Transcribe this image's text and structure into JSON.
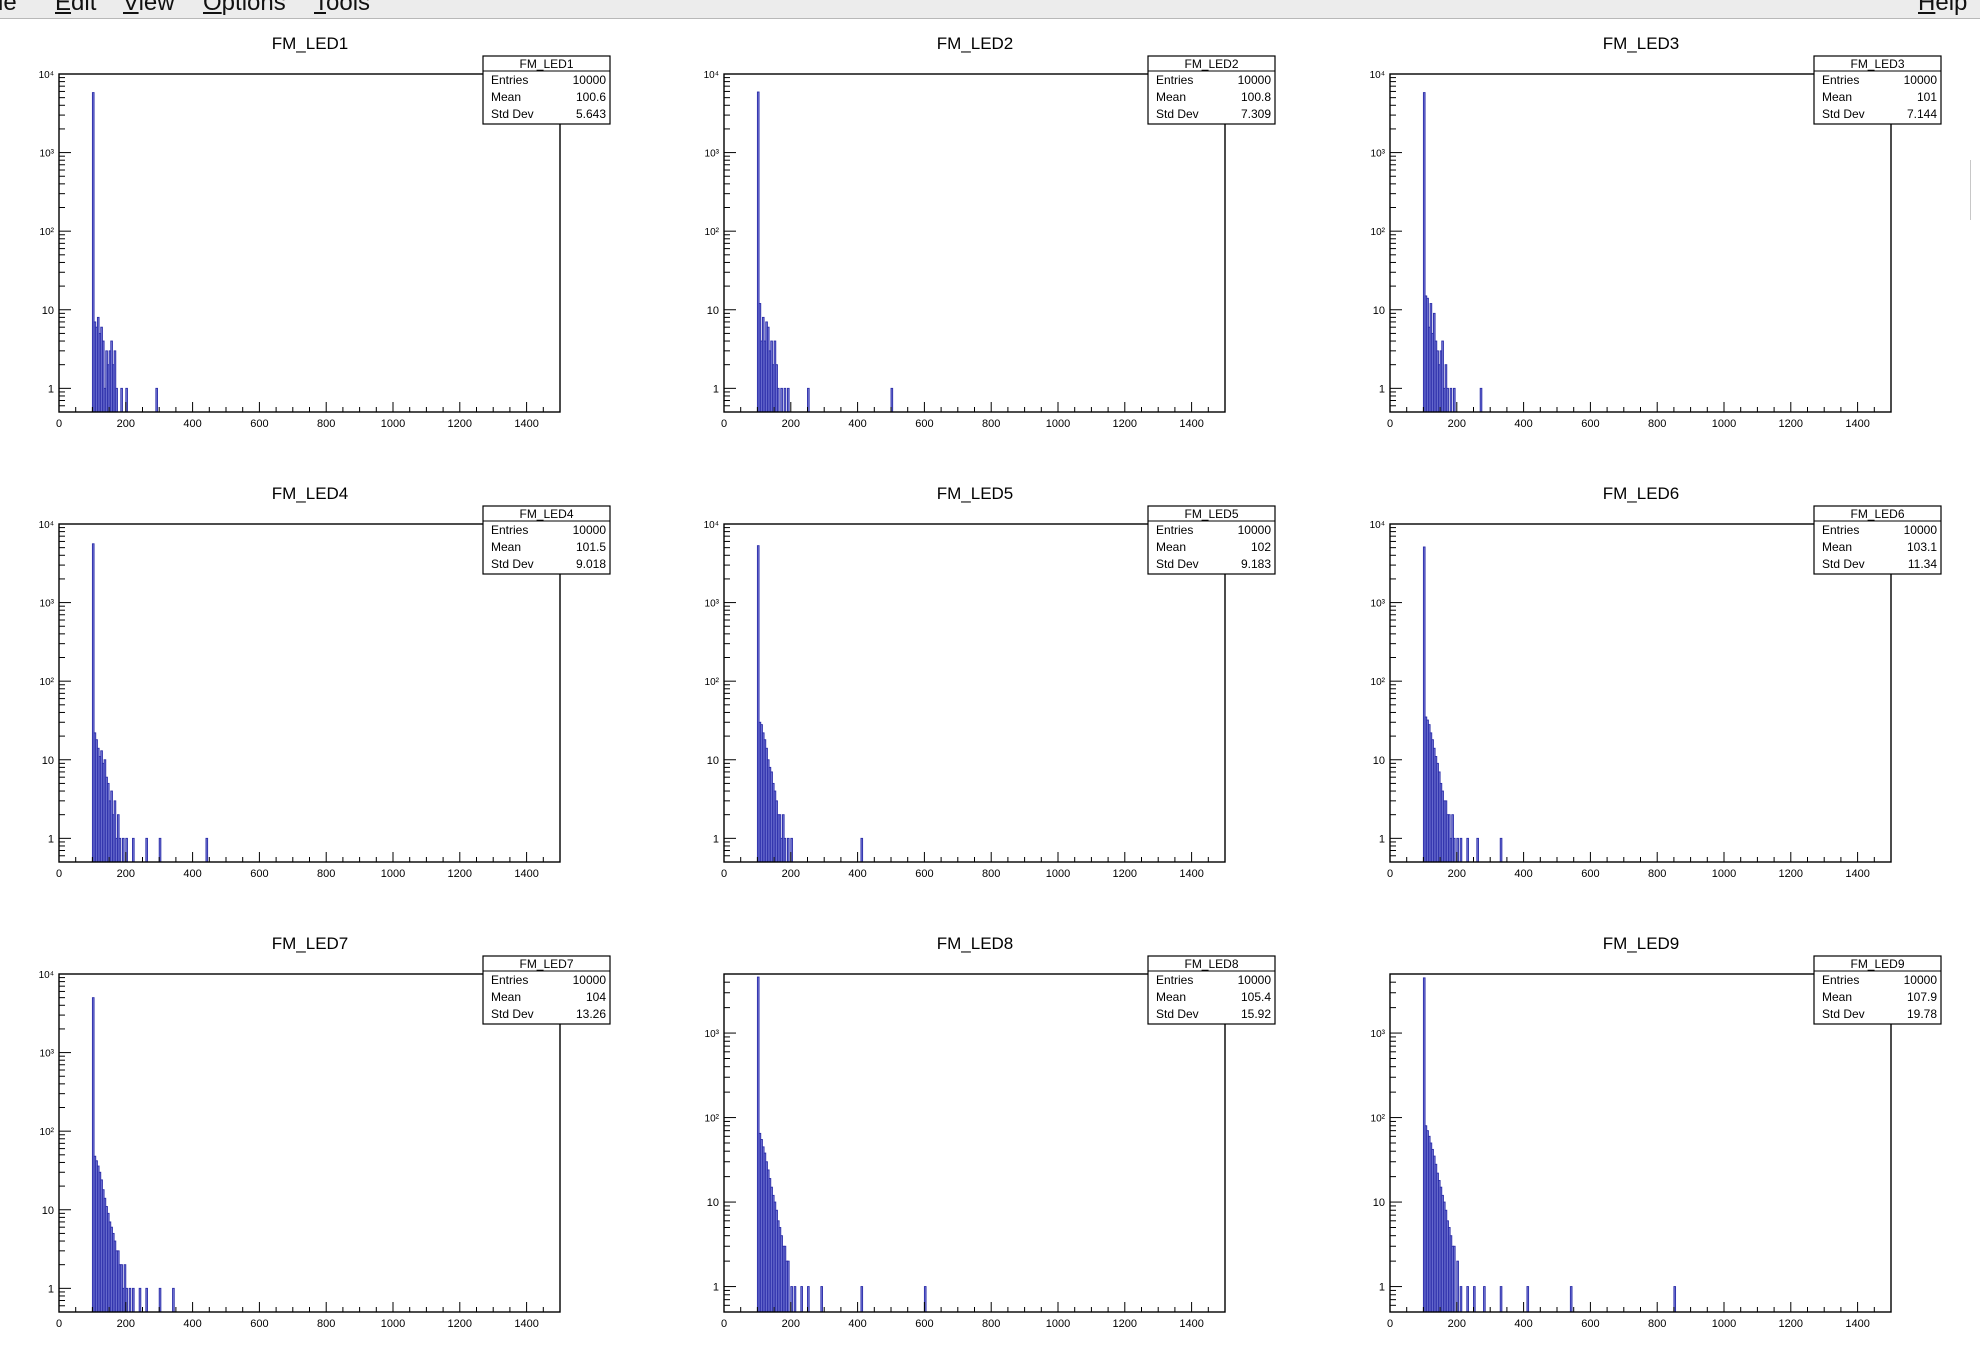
{
  "menubar": {
    "items": [
      {
        "name": "file",
        "pre": "",
        "acc": "F",
        "post": "ile"
      },
      {
        "name": "edit",
        "pre": "",
        "acc": "E",
        "post": "dit"
      },
      {
        "name": "view",
        "pre": "",
        "acc": "V",
        "post": "iew"
      },
      {
        "name": "options",
        "pre": "",
        "acc": "O",
        "post": "ptions"
      },
      {
        "name": "tools",
        "pre": "",
        "acc": "T",
        "post": "ools"
      }
    ],
    "help": {
      "pre": "",
      "acc": "H",
      "post": "elp"
    }
  },
  "colors": {
    "fill": "#7b7fd9",
    "line": "#2a2ca8",
    "axis": "#000000"
  },
  "chart_data": [
    {
      "type": "bar",
      "title": "FM_LED1",
      "scale": "log",
      "xlim": [
        0,
        1500
      ],
      "ylim": [
        0.5,
        10000
      ],
      "x_ticks": [
        0,
        200,
        400,
        600,
        800,
        1000,
        1200,
        1400
      ],
      "y_ticks": [
        {
          "v": 1,
          "label": "1"
        },
        {
          "v": 10,
          "label": "10"
        },
        {
          "v": 100,
          "label": "10²"
        },
        {
          "v": 1000,
          "label": "10³"
        },
        {
          "v": 10000,
          "label": "10⁴"
        }
      ],
      "stats": {
        "name": "FM_LED1",
        "entries": "10000",
        "mean": "100.6",
        "stddev": "5.643"
      },
      "bins": [
        [
          100,
          5800
        ],
        [
          105,
          7
        ],
        [
          110,
          6
        ],
        [
          115,
          8
        ],
        [
          120,
          5
        ],
        [
          125,
          6
        ],
        [
          130,
          4
        ],
        [
          135,
          1
        ],
        [
          140,
          3
        ],
        [
          145,
          2
        ],
        [
          150,
          3
        ],
        [
          155,
          4
        ],
        [
          160,
          2
        ],
        [
          165,
          3
        ],
        [
          170,
          1
        ],
        [
          185,
          1
        ],
        [
          200,
          1
        ],
        [
          290,
          1
        ]
      ]
    },
    {
      "type": "bar",
      "title": "FM_LED2",
      "scale": "log",
      "xlim": [
        0,
        1500
      ],
      "ylim": [
        0.5,
        10000
      ],
      "x_ticks": [
        0,
        200,
        400,
        600,
        800,
        1000,
        1200,
        1400
      ],
      "y_ticks": [
        {
          "v": 1,
          "label": "1"
        },
        {
          "v": 10,
          "label": "10"
        },
        {
          "v": 100,
          "label": "10²"
        },
        {
          "v": 1000,
          "label": "10³"
        },
        {
          "v": 10000,
          "label": "10⁴"
        }
      ],
      "stats": {
        "name": "FM_LED2",
        "entries": "10000",
        "mean": "100.8",
        "stddev": "7.309"
      },
      "bins": [
        [
          100,
          5900
        ],
        [
          105,
          12
        ],
        [
          110,
          4
        ],
        [
          115,
          8
        ],
        [
          120,
          4
        ],
        [
          125,
          7
        ],
        [
          130,
          6
        ],
        [
          135,
          3
        ],
        [
          140,
          4
        ],
        [
          145,
          2
        ],
        [
          150,
          4
        ],
        [
          155,
          2
        ],
        [
          160,
          1
        ],
        [
          170,
          1
        ],
        [
          180,
          1
        ],
        [
          190,
          1
        ],
        [
          250,
          1
        ],
        [
          500,
          1
        ]
      ]
    },
    {
      "type": "bar",
      "title": "FM_LED3",
      "scale": "log",
      "xlim": [
        0,
        1500
      ],
      "ylim": [
        0.5,
        10000
      ],
      "x_ticks": [
        0,
        200,
        400,
        600,
        800,
        1000,
        1200,
        1400
      ],
      "y_ticks": [
        {
          "v": 1,
          "label": "1"
        },
        {
          "v": 10,
          "label": "10"
        },
        {
          "v": 100,
          "label": "10²"
        },
        {
          "v": 1000,
          "label": "10³"
        },
        {
          "v": 10000,
          "label": "10⁴"
        }
      ],
      "stats": {
        "name": "FM_LED3",
        "entries": "10000",
        "mean": "101",
        "stddev": "7.144"
      },
      "bins": [
        [
          100,
          5800
        ],
        [
          105,
          15
        ],
        [
          110,
          14
        ],
        [
          115,
          6
        ],
        [
          120,
          12
        ],
        [
          125,
          5
        ],
        [
          130,
          9
        ],
        [
          135,
          4
        ],
        [
          140,
          3
        ],
        [
          145,
          2
        ],
        [
          150,
          3
        ],
        [
          155,
          4
        ],
        [
          160,
          1
        ],
        [
          165,
          2
        ],
        [
          170,
          1
        ],
        [
          180,
          1
        ],
        [
          190,
          1
        ],
        [
          270,
          1
        ]
      ]
    },
    {
      "type": "bar",
      "title": "FM_LED4",
      "scale": "log",
      "xlim": [
        0,
        1500
      ],
      "ylim": [
        0.5,
        10000
      ],
      "x_ticks": [
        0,
        200,
        400,
        600,
        800,
        1000,
        1200,
        1400
      ],
      "y_ticks": [
        {
          "v": 1,
          "label": "1"
        },
        {
          "v": 10,
          "label": "10"
        },
        {
          "v": 100,
          "label": "10²"
        },
        {
          "v": 1000,
          "label": "10³"
        },
        {
          "v": 10000,
          "label": "10⁴"
        }
      ],
      "stats": {
        "name": "FM_LED4",
        "entries": "10000",
        "mean": "101.5",
        "stddev": "9.018"
      },
      "bins": [
        [
          100,
          5600
        ],
        [
          105,
          22
        ],
        [
          110,
          18
        ],
        [
          115,
          14
        ],
        [
          120,
          11
        ],
        [
          125,
          13
        ],
        [
          130,
          9
        ],
        [
          135,
          10
        ],
        [
          140,
          6
        ],
        [
          145,
          5
        ],
        [
          150,
          3
        ],
        [
          155,
          4
        ],
        [
          160,
          2
        ],
        [
          165,
          3
        ],
        [
          170,
          1
        ],
        [
          175,
          2
        ],
        [
          180,
          1
        ],
        [
          190,
          1
        ],
        [
          200,
          1
        ],
        [
          220,
          1
        ],
        [
          260,
          1
        ],
        [
          300,
          1
        ],
        [
          440,
          1
        ]
      ]
    },
    {
      "type": "bar",
      "title": "FM_LED5",
      "scale": "log",
      "xlim": [
        0,
        1500
      ],
      "ylim": [
        0.5,
        10000
      ],
      "x_ticks": [
        0,
        200,
        400,
        600,
        800,
        1000,
        1200,
        1400
      ],
      "y_ticks": [
        {
          "v": 1,
          "label": "1"
        },
        {
          "v": 10,
          "label": "10"
        },
        {
          "v": 100,
          "label": "10²"
        },
        {
          "v": 1000,
          "label": "10³"
        },
        {
          "v": 10000,
          "label": "10⁴"
        }
      ],
      "stats": {
        "name": "FM_LED5",
        "entries": "10000",
        "mean": "102",
        "stddev": "9.183"
      },
      "bins": [
        [
          100,
          5300
        ],
        [
          105,
          30
        ],
        [
          110,
          28
        ],
        [
          115,
          22
        ],
        [
          120,
          18
        ],
        [
          125,
          14
        ],
        [
          130,
          10
        ],
        [
          135,
          8
        ],
        [
          140,
          7
        ],
        [
          145,
          5
        ],
        [
          150,
          4
        ],
        [
          155,
          3
        ],
        [
          160,
          2
        ],
        [
          165,
          2
        ],
        [
          170,
          1
        ],
        [
          175,
          2
        ],
        [
          180,
          1
        ],
        [
          190,
          1
        ],
        [
          200,
          1
        ],
        [
          410,
          1
        ]
      ]
    },
    {
      "type": "bar",
      "title": "FM_LED6",
      "scale": "log",
      "xlim": [
        0,
        1500
      ],
      "ylim": [
        0.5,
        10000
      ],
      "x_ticks": [
        0,
        200,
        400,
        600,
        800,
        1000,
        1200,
        1400
      ],
      "y_ticks": [
        {
          "v": 1,
          "label": "1"
        },
        {
          "v": 10,
          "label": "10"
        },
        {
          "v": 100,
          "label": "10²"
        },
        {
          "v": 1000,
          "label": "10³"
        },
        {
          "v": 10000,
          "label": "10⁴"
        }
      ],
      "stats": {
        "name": "FM_LED6",
        "entries": "10000",
        "mean": "103.1",
        "stddev": "11.34"
      },
      "bins": [
        [
          100,
          5100
        ],
        [
          105,
          35
        ],
        [
          110,
          32
        ],
        [
          115,
          28
        ],
        [
          120,
          22
        ],
        [
          125,
          18
        ],
        [
          130,
          14
        ],
        [
          135,
          11
        ],
        [
          140,
          9
        ],
        [
          145,
          7
        ],
        [
          150,
          5
        ],
        [
          155,
          4
        ],
        [
          160,
          3
        ],
        [
          165,
          3
        ],
        [
          170,
          2
        ],
        [
          175,
          2
        ],
        [
          180,
          1
        ],
        [
          185,
          2
        ],
        [
          190,
          1
        ],
        [
          200,
          1
        ],
        [
          210,
          1
        ],
        [
          230,
          1
        ],
        [
          260,
          1
        ],
        [
          330,
          1
        ]
      ]
    },
    {
      "type": "bar",
      "title": "FM_LED7",
      "scale": "log",
      "xlim": [
        0,
        1500
      ],
      "ylim": [
        0.5,
        10000
      ],
      "x_ticks": [
        0,
        200,
        400,
        600,
        800,
        1000,
        1200,
        1400
      ],
      "y_ticks": [
        {
          "v": 1,
          "label": "1"
        },
        {
          "v": 10,
          "label": "10"
        },
        {
          "v": 100,
          "label": "10²"
        },
        {
          "v": 1000,
          "label": "10³"
        },
        {
          "v": 10000,
          "label": "10⁴"
        }
      ],
      "stats": {
        "name": "FM_LED7",
        "entries": "10000",
        "mean": "104",
        "stddev": "13.26"
      },
      "bins": [
        [
          100,
          5000
        ],
        [
          105,
          48
        ],
        [
          110,
          42
        ],
        [
          115,
          36
        ],
        [
          120,
          30
        ],
        [
          125,
          24
        ],
        [
          130,
          18
        ],
        [
          135,
          14
        ],
        [
          140,
          11
        ],
        [
          145,
          9
        ],
        [
          150,
          7
        ],
        [
          155,
          6
        ],
        [
          160,
          5
        ],
        [
          165,
          4
        ],
        [
          170,
          3
        ],
        [
          175,
          3
        ],
        [
          180,
          2
        ],
        [
          185,
          2
        ],
        [
          190,
          1
        ],
        [
          195,
          2
        ],
        [
          200,
          1
        ],
        [
          210,
          1
        ],
        [
          220,
          1
        ],
        [
          240,
          1
        ],
        [
          260,
          1
        ],
        [
          300,
          1
        ],
        [
          340,
          1
        ]
      ]
    },
    {
      "type": "bar",
      "title": "FM_LED8",
      "scale": "log",
      "xlim": [
        0,
        1500
      ],
      "ylim": [
        0.5,
        5000
      ],
      "x_ticks": [
        0,
        200,
        400,
        600,
        800,
        1000,
        1200,
        1400
      ],
      "y_ticks": [
        {
          "v": 1,
          "label": "1"
        },
        {
          "v": 10,
          "label": "10"
        },
        {
          "v": 100,
          "label": "10²"
        },
        {
          "v": 1000,
          "label": "10³"
        }
      ],
      "stats": {
        "name": "FM_LED8",
        "entries": "10000",
        "mean": "105.4",
        "stddev": "15.92"
      },
      "bins": [
        [
          100,
          4600
        ],
        [
          105,
          65
        ],
        [
          110,
          55
        ],
        [
          115,
          45
        ],
        [
          120,
          38
        ],
        [
          125,
          30
        ],
        [
          130,
          24
        ],
        [
          135,
          19
        ],
        [
          140,
          15
        ],
        [
          145,
          12
        ],
        [
          150,
          10
        ],
        [
          155,
          8
        ],
        [
          160,
          6
        ],
        [
          165,
          5
        ],
        [
          170,
          4
        ],
        [
          175,
          3
        ],
        [
          180,
          3
        ],
        [
          185,
          2
        ],
        [
          190,
          2
        ],
        [
          200,
          1
        ],
        [
          210,
          1
        ],
        [
          230,
          1
        ],
        [
          250,
          1
        ],
        [
          290,
          1
        ],
        [
          410,
          1
        ],
        [
          600,
          1
        ]
      ]
    },
    {
      "type": "bar",
      "title": "FM_LED9",
      "scale": "log",
      "xlim": [
        0,
        1500
      ],
      "ylim": [
        0.5,
        5000
      ],
      "x_ticks": [
        0,
        200,
        400,
        600,
        800,
        1000,
        1200,
        1400
      ],
      "y_ticks": [
        {
          "v": 1,
          "label": "1"
        },
        {
          "v": 10,
          "label": "10"
        },
        {
          "v": 100,
          "label": "10²"
        },
        {
          "v": 1000,
          "label": "10³"
        }
      ],
      "stats": {
        "name": "FM_LED9",
        "entries": "10000",
        "mean": "107.9",
        "stddev": "19.78"
      },
      "bins": [
        [
          100,
          4500
        ],
        [
          105,
          80
        ],
        [
          110,
          70
        ],
        [
          115,
          60
        ],
        [
          120,
          50
        ],
        [
          125,
          42
        ],
        [
          130,
          35
        ],
        [
          135,
          28
        ],
        [
          140,
          22
        ],
        [
          145,
          18
        ],
        [
          150,
          15
        ],
        [
          155,
          12
        ],
        [
          160,
          10
        ],
        [
          165,
          8
        ],
        [
          170,
          6
        ],
        [
          175,
          5
        ],
        [
          180,
          4
        ],
        [
          185,
          3
        ],
        [
          190,
          3
        ],
        [
          200,
          2
        ],
        [
          210,
          1
        ],
        [
          230,
          1
        ],
        [
          250,
          1
        ],
        [
          280,
          1
        ],
        [
          330,
          1
        ],
        [
          410,
          1
        ],
        [
          540,
          1
        ],
        [
          850,
          1
        ]
      ]
    }
  ]
}
